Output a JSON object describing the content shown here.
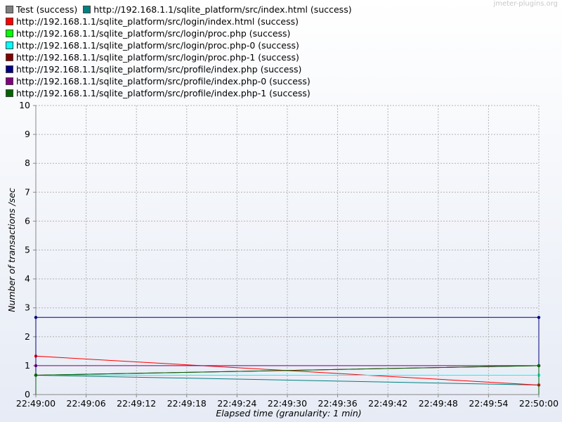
{
  "watermark": "jmeter-plugins.org",
  "chart_data": {
    "type": "line",
    "title": "",
    "xlabel": "Elapsed time (granularity: 1 min)",
    "ylabel": "Number of transactions /sec",
    "ylim": [
      0,
      10
    ],
    "yticks": [
      "0",
      "1",
      "2",
      "3",
      "4",
      "5",
      "6",
      "7",
      "8",
      "9",
      "10"
    ],
    "xticks": [
      "22:49:00",
      "22:49:06",
      "22:49:12",
      "22:49:18",
      "22:49:24",
      "22:49:30",
      "22:49:36",
      "22:49:42",
      "22:49:48",
      "22:49:54",
      "22:50:00"
    ],
    "x": [
      "22:49:00",
      "22:50:00"
    ],
    "grid": true,
    "legend_position": "top-left",
    "series": [
      {
        "name": "Test (success)",
        "color": "#808080",
        "values": [
          0.67,
          0.67
        ]
      },
      {
        "name": "http://192.168.1.1/sqlite_platform/src/index.html (success)",
        "color": "#008080",
        "values": [
          0.67,
          0.33
        ]
      },
      {
        "name": "http://192.168.1.1/sqlite_platform/src/login/index.html (success)",
        "color": "#ff0000",
        "values": [
          1.33,
          0.33
        ]
      },
      {
        "name": "http://192.168.1.1/sqlite_platform/src/login/proc.php (success)",
        "color": "#00ff00",
        "values": [
          0.67,
          0.67
        ]
      },
      {
        "name": "http://192.168.1.1/sqlite_platform/src/login/proc.php-0 (success)",
        "color": "#00ffff",
        "values": [
          0.67,
          0.67
        ]
      },
      {
        "name": "http://192.168.1.1/sqlite_platform/src/login/proc.php-1 (success)",
        "color": "#800000",
        "values": [
          0.67,
          1.0
        ]
      },
      {
        "name": "http://192.168.1.1/sqlite_platform/src/profile/index.php (success)",
        "color": "#000080",
        "values": [
          2.67,
          2.67
        ]
      },
      {
        "name": "http://192.168.1.1/sqlite_platform/src/profile/index.php-0 (success)",
        "color": "#800080",
        "values": [
          1.0,
          1.0
        ]
      },
      {
        "name": "http://192.168.1.1/sqlite_platform/src/profile/index.php-1 (success)",
        "color": "#006400",
        "values": [
          0.67,
          1.0
        ]
      }
    ]
  }
}
